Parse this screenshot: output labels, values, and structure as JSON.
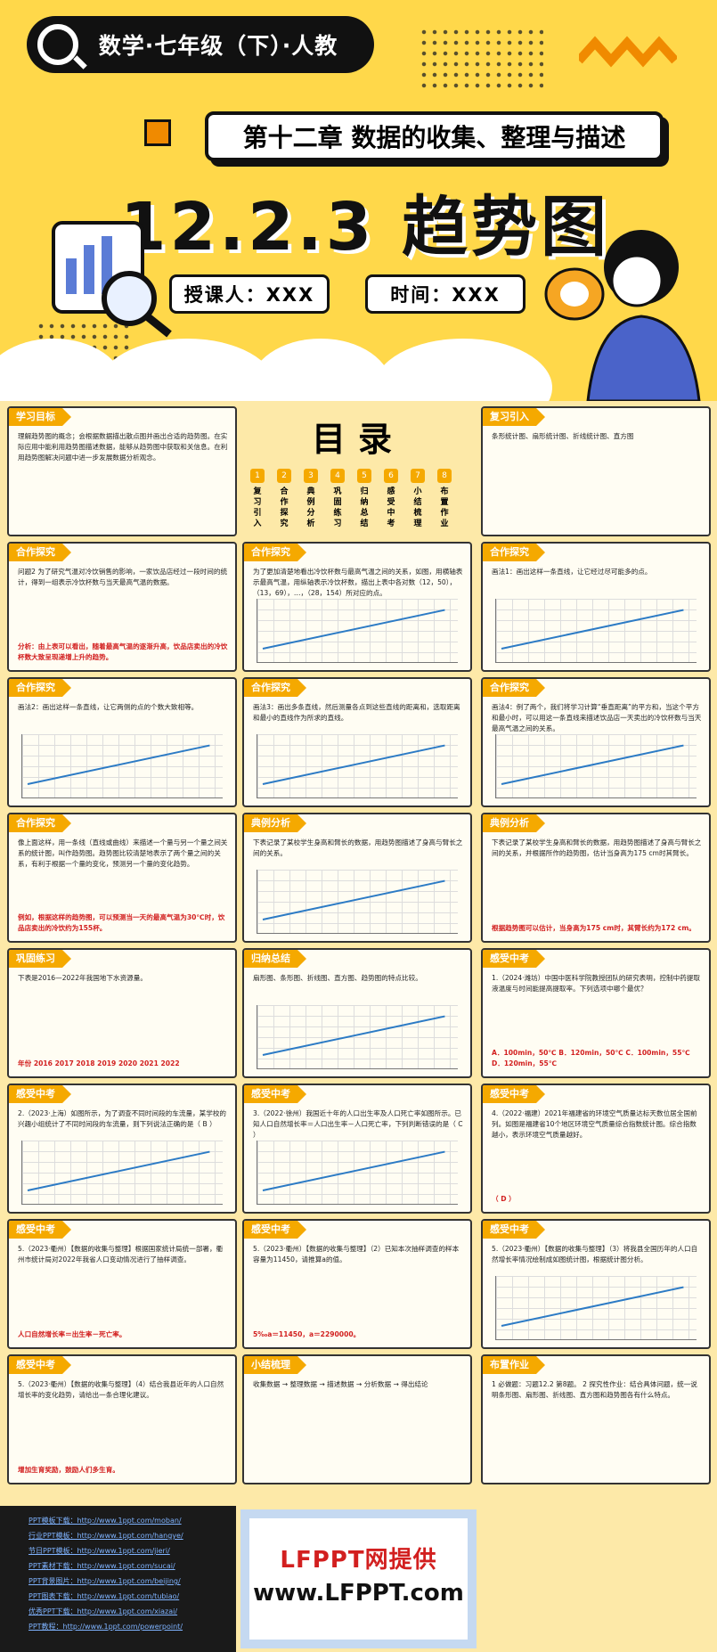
{
  "hero": {
    "subject": "数学·七年级（下）·人教",
    "chapter": "第十二章 数据的收集、整理与描述",
    "title": "12.2.3 趋势图",
    "teacher": "授课人：XXX",
    "time": "时间：XXX"
  },
  "catalog": {
    "title": "目录",
    "items": [
      {
        "num": "1",
        "label": "复习引入"
      },
      {
        "num": "2",
        "label": "合作探究"
      },
      {
        "num": "3",
        "label": "典例分析"
      },
      {
        "num": "4",
        "label": "巩固练习"
      },
      {
        "num": "5",
        "label": "归纳总结"
      },
      {
        "num": "6",
        "label": "感受中考"
      },
      {
        "num": "7",
        "label": "小结梳理"
      },
      {
        "num": "8",
        "label": "布置作业"
      }
    ]
  },
  "slides": [
    {
      "tag": "学习目标",
      "text": "理解趋势图的概念；会根据数据描出散点图并画出合适的趋势图。在实际应用中能利用趋势图描述数据，能够从趋势图中获取和关信息。在利用趋势图解决问题中进一步发展数据分析观念。"
    },
    {
      "tag": "复习引入",
      "text": "条形统计图、扇形统计图、折线统计图、直方图"
    },
    {
      "tag": "合作探究",
      "text": "问题2 为了研究气温对冷饮销售的影响，一家饮品店经过一段时间的统计，得到一组表示冷饮杯数与当天最高气温的数据。",
      "note": "分析：由上表可以看出，随着最高气温的逐渐升高，饮品店卖出的冷饮杯数大致呈现递增上升的趋势。"
    },
    {
      "tag": "合作探究",
      "text": "为了更加清楚地看出冷饮杯数与最高气温之间的关系，如图，用横轴表示最高气温，用纵轴表示冷饮杯数，描出上表中各对数（12，50），（13，69），…，（28，154）所对应的点。"
    },
    {
      "tag": "合作探究",
      "text": "画法1：画出这样一条直线，让它经过尽可能多的点。"
    },
    {
      "tag": "合作探究",
      "text": "画法2：画出这样一条直线，让它两侧的点的个数大致相等。"
    },
    {
      "tag": "合作探究",
      "text": "画法3：画出多条直线，然后测量各点到这些直线的距离和，选取距离和最小的直线作为所求的直线。"
    },
    {
      "tag": "合作探究",
      "text": "画法4：例了两个，我们将学习计算“垂直距离”的平方和，当这个平方和最小时，可以用这一条直线来描述饮品店一天卖出的冷饮杯数与当天最高气温之间的关系。"
    },
    {
      "tag": "合作探究",
      "text": "像上面这样，用一条线（直线或曲线）来描述一个量与另一个量之间关系的统计图，叫作趋势图。趋势图比较清楚地表示了两个量之间的关系，有利于根据一个量的变化，预测另一个量的变化趋势。",
      "note": "例如，根据这样的趋势图，可以预测当一天的最高气温为30℃时，饮品店卖出的冷饮约为155杯。"
    },
    {
      "tag": "典例分析",
      "text": "下表记录了某校学生身高和臂长的数据，用趋势图描述了身高与臂长之间的关系。"
    },
    {
      "tag": "典例分析",
      "text": "下表记录了某校学生身高和臂长的数据，用趋势图描述了身高与臂长之间的关系，并根据所作的趋势图，估计当身高为175 cm时其臂长。",
      "note": "根据趋势图可以估计，当身高为175 cm时，其臂长约为172 cm。"
    },
    {
      "tag": "巩固练习",
      "text": "下表是2016—2022年我国地下水资源量。",
      "note": "年份 2016 2017 2018 2019 2020 2021 2022"
    },
    {
      "tag": "归纳总结",
      "text": "扇形图、条形图、折线图、直方图、趋势图的特点比较。"
    },
    {
      "tag": "感受中考",
      "text": "1.（2024·潍坊）中国中医科学院教授团队的研究表明，控制中药提取液温度与时间能提高提取率。下列选项中哪个最优？",
      "note": "A．100min，50℃  B．120min，50℃  C．100min，55℃  D．120min，55℃"
    },
    {
      "tag": "感受中考",
      "text": "2.（2023·上海）如图所示，为了调查不同时间段的车流量，某学校的兴趣小组统计了不同时间段的车流量，则下列说法正确的是（ B ）"
    },
    {
      "tag": "感受中考",
      "text": "3.（2022·徐州）我国近十年的人口出生率及人口死亡率如图所示。已知人口自然增长率＝人口出生率－人口死亡率，下列判断错误的是（ C ）"
    },
    {
      "tag": "感受中考",
      "text": "4.（2022·福建）2021年福建省的环境空气质量达标天数位居全国前列。如图是福建省10个地区环境空气质量综合指数统计图。综合指数越小，表示环境空气质量越好。",
      "note": "（ D ）"
    },
    {
      "tag": "感受中考",
      "text": "5.（2023·衢州）【数据的收集与整理】根据国家统计局统一部署，衢州市统计局对2022年我省人口变动情况进行了抽样调查。",
      "note": "人口自然增长率＝出生率－死亡率。"
    },
    {
      "tag": "感受中考",
      "text": "5.（2023·衢州）【数据的收集与整理】（2）已知本次抽样调查的样本容量为11450，请推算a的值。",
      "note": "5‰a＝11450，a＝2290000。"
    },
    {
      "tag": "感受中考",
      "text": "5.（2023·衢州）【数据的收集与整理】（3）将我县全国历年的人口自然增长率情况绘制成如图统计图，根据统计图分析。"
    },
    {
      "tag": "感受中考",
      "text": "5.（2023·衢州）【数据的收集与整理】（4）结合我县近年的人口自然增长率的变化趋势，请给出一条合理化建议。",
      "note": "增加生育奖励，鼓励人们多生育。"
    },
    {
      "tag": "小结梳理",
      "text": "收集数据 → 整理数据 → 描述数据 → 分析数据 → 得出结论"
    },
    {
      "tag": "布置作业",
      "text": "1 必做题：习题12.2 第8题。  2 探究性作业：结合具体问题，统一说明条形图、扇形图、折线图、直方图和趋势图各有什么特点。"
    }
  ],
  "footer": {
    "links": [
      "PPT模板下载：http://www.1ppt.com/moban/",
      "行业PPT模板：http://www.1ppt.com/hangye/",
      "节日PPT模板：http://www.1ppt.com/jieri/",
      "PPT素材下载：http://www.1ppt.com/sucai/",
      "PPT背景图片：http://www.1ppt.com/beijing/",
      "PPT图表下载：http://www.1ppt.com/tubiao/",
      "优秀PPT下载：http://www.1ppt.com/xiazai/",
      "PPT教程：http://www.1ppt.com/powerpoint/"
    ],
    "brand1": "LFPPT网提供",
    "brand2": "www.LFPPT.com"
  }
}
